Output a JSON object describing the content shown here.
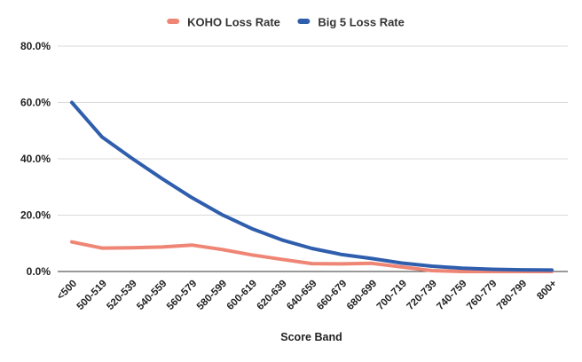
{
  "chart_data": {
    "type": "line",
    "title": "",
    "xlabel": "Score Band",
    "ylabel": "",
    "categories": [
      "<500",
      "500-519",
      "520-539",
      "540-559",
      "560-579",
      "580-599",
      "600-619",
      "620-639",
      "640-659",
      "660-679",
      "680-699",
      "700-719",
      "720-739",
      "740-759",
      "760-779",
      "780-799",
      "800+"
    ],
    "series": [
      {
        "name": "KOHO Loss Rate",
        "color": "#ef8575",
        "values": [
          10.5,
          8.3,
          8.4,
          8.7,
          9.4,
          7.8,
          5.9,
          4.3,
          2.8,
          2.7,
          2.9,
          1.6,
          0.3,
          0.0,
          0.0,
          0.0,
          0.0
        ]
      },
      {
        "name": "Big 5 Loss Rate",
        "color": "#2f5ead",
        "values": [
          60.0,
          47.8,
          40.2,
          33.0,
          26.2,
          20.2,
          15.2,
          11.2,
          8.2,
          6.0,
          4.6,
          3.0,
          1.9,
          1.2,
          0.8,
          0.6,
          0.5
        ]
      }
    ],
    "ylim": [
      0,
      80
    ],
    "yticks": [
      "0.0%",
      "20.0%",
      "40.0%",
      "60.0%",
      "80.0%"
    ],
    "ytick_values": [
      0,
      20,
      40,
      60,
      80
    ],
    "grid": true,
    "legend": "top-center"
  }
}
